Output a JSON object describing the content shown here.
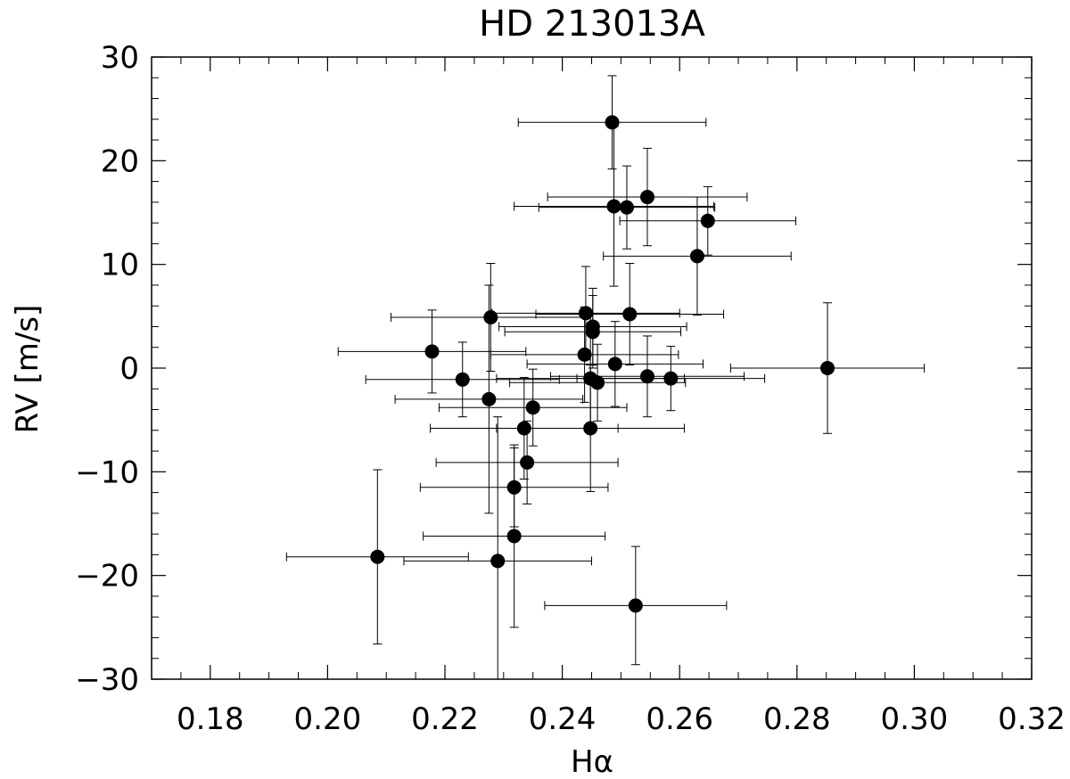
{
  "chart_data": {
    "type": "scatter",
    "title": "HD 213013A",
    "xlabel": "Hα",
    "ylabel": "RV [m/s]",
    "xlim": [
      0.17,
      0.32
    ],
    "ylim": [
      -30,
      30
    ],
    "x_ticks": [
      0.18,
      0.2,
      0.22,
      0.24,
      0.26,
      0.28,
      0.3,
      0.32
    ],
    "x_tick_labels": [
      "0.18",
      "0.20",
      "0.22",
      "0.24",
      "0.26",
      "0.28",
      "0.30",
      "0.32"
    ],
    "y_ticks": [
      -30,
      -20,
      -10,
      0,
      10,
      20,
      30
    ],
    "y_tick_labels": [
      "−30",
      "−20",
      "−10",
      "0",
      "10",
      "20",
      "30"
    ],
    "grid": false,
    "colors": {
      "marker": "#000000",
      "errorbar": "#000000",
      "axes": "#000000"
    },
    "points": [
      {
        "x": 0.2485,
        "y": 23.7,
        "xerr": 0.016,
        "yerr": 4.5
      },
      {
        "x": 0.2545,
        "y": 16.5,
        "xerr": 0.017,
        "yerr": 4.7
      },
      {
        "x": 0.2488,
        "y": 15.6,
        "xerr": 0.017,
        "yerr": 7.7
      },
      {
        "x": 0.251,
        "y": 15.5,
        "xerr": 0.015,
        "yerr": 4.0
      },
      {
        "x": 0.2648,
        "y": 14.2,
        "xerr": 0.015,
        "yerr": 3.3
      },
      {
        "x": 0.263,
        "y": 10.8,
        "xerr": 0.016,
        "yerr": 5.7
      },
      {
        "x": 0.2278,
        "y": 4.9,
        "xerr": 0.017,
        "yerr": 5.2
      },
      {
        "x": 0.244,
        "y": 5.3,
        "xerr": 0.016,
        "yerr": 4.5
      },
      {
        "x": 0.2515,
        "y": 5.2,
        "xerr": 0.016,
        "yerr": 4.9
      },
      {
        "x": 0.2452,
        "y": 4.0,
        "xerr": 0.016,
        "yerr": 3.7
      },
      {
        "x": 0.2452,
        "y": 3.5,
        "xerr": 0.015,
        "yerr": 3.5
      },
      {
        "x": 0.2178,
        "y": 1.6,
        "xerr": 0.016,
        "yerr": 4.0
      },
      {
        "x": 0.2438,
        "y": 1.3,
        "xerr": 0.016,
        "yerr": 4.6
      },
      {
        "x": 0.249,
        "y": 0.4,
        "xerr": 0.015,
        "yerr": 4.1
      },
      {
        "x": 0.2852,
        "y": 0.0,
        "xerr": 0.0165,
        "yerr": 6.3
      },
      {
        "x": 0.223,
        "y": -1.1,
        "xerr": 0.0165,
        "yerr": 3.6
      },
      {
        "x": 0.2448,
        "y": -1.0,
        "xerr": 0.016,
        "yerr": 4.6
      },
      {
        "x": 0.2545,
        "y": -0.8,
        "xerr": 0.0165,
        "yerr": 3.9
      },
      {
        "x": 0.2585,
        "y": -1.0,
        "xerr": 0.016,
        "yerr": 3.1
      },
      {
        "x": 0.246,
        "y": -1.4,
        "xerr": 0.015,
        "yerr": 3.7
      },
      {
        "x": 0.2275,
        "y": -3.0,
        "xerr": 0.016,
        "yerr": 11.0
      },
      {
        "x": 0.235,
        "y": -3.8,
        "xerr": 0.016,
        "yerr": 3.7
      },
      {
        "x": 0.2335,
        "y": -5.8,
        "xerr": 0.016,
        "yerr": 4.9
      },
      {
        "x": 0.2448,
        "y": -5.8,
        "xerr": 0.016,
        "yerr": 6.1
      },
      {
        "x": 0.234,
        "y": -9.1,
        "xerr": 0.0155,
        "yerr": 4.0
      },
      {
        "x": 0.2318,
        "y": -11.5,
        "xerr": 0.016,
        "yerr": 3.8
      },
      {
        "x": 0.2318,
        "y": -16.2,
        "xerr": 0.0155,
        "yerr": 8.8
      },
      {
        "x": 0.2085,
        "y": -18.2,
        "xerr": 0.0155,
        "yerr": 8.4
      },
      {
        "x": 0.229,
        "y": -18.6,
        "xerr": 0.016,
        "yerr": 13.9
      },
      {
        "x": 0.2525,
        "y": -22.9,
        "xerr": 0.0155,
        "yerr": 5.7
      }
    ]
  }
}
